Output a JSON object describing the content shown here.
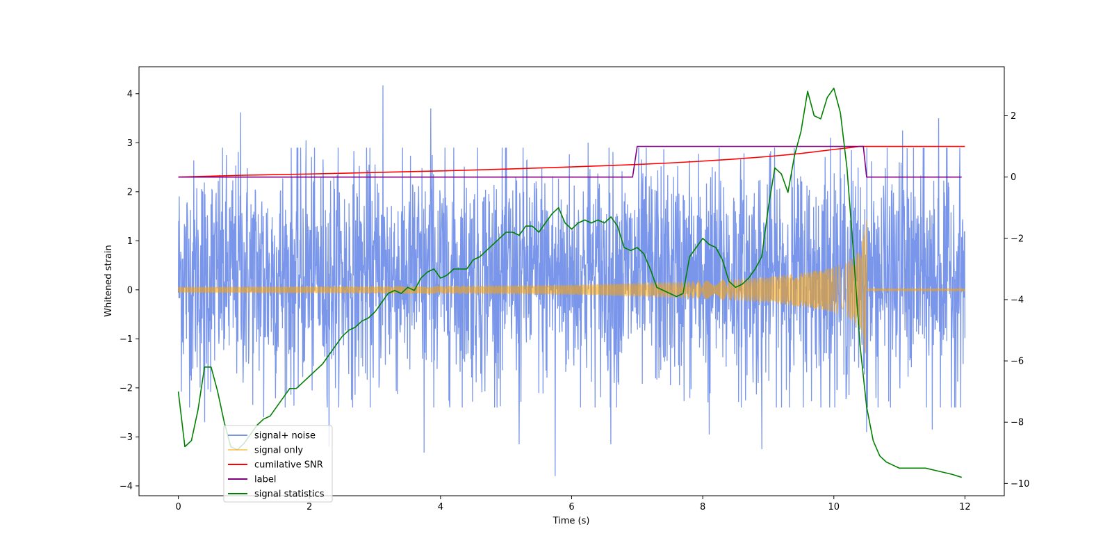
{
  "chart_data": {
    "type": "line",
    "title": "",
    "xlabel": "Time (s)",
    "ylabel": "Whitened strain",
    "xlim": [
      -0.6,
      12.6
    ],
    "ylim": [
      -4.2,
      4.55
    ],
    "y2lim": [
      -10.4,
      3.6
    ],
    "xticks": [
      0,
      2,
      4,
      6,
      8,
      10,
      12
    ],
    "yticks": [
      -4,
      -3,
      -2,
      -1,
      0,
      1,
      2,
      3,
      4
    ],
    "y2ticks": [
      -10,
      -8,
      -6,
      -4,
      -2,
      0,
      2
    ],
    "tick_labels": {
      "x": [
        "0",
        "2",
        "4",
        "6",
        "8",
        "10",
        "12"
      ],
      "y": [
        "−4",
        "−3",
        "−2",
        "−1",
        "0",
        "1",
        "2",
        "3",
        "4"
      ],
      "y2": [
        "−10",
        "−8",
        "−6",
        "−4",
        "−2",
        "0",
        "2"
      ]
    },
    "legend_location": "lower-left",
    "series": [
      {
        "name": "signal+ noise",
        "axis": "left",
        "color": "#4169e1",
        "kind": "noise",
        "t_range": [
          0,
          12
        ],
        "typical_range": [
          -1.8,
          2.4
        ],
        "spikes_up": [
          [
            0.95,
            3.62
          ],
          [
            1.95,
            3.05
          ],
          [
            3.12,
            4.17
          ],
          [
            3.75,
            3.35
          ],
          [
            3.85,
            3.7
          ],
          [
            6.25,
            3.0
          ],
          [
            9.95,
            3.1
          ],
          [
            11.05,
            3.25
          ],
          [
            11.6,
            3.5
          ]
        ],
        "spikes_down": [
          [
            0.4,
            -2.7
          ],
          [
            1.3,
            -2.6
          ],
          [
            2.3,
            -3.2
          ],
          [
            3.75,
            -3.32
          ],
          [
            5.2,
            -3.15
          ],
          [
            5.75,
            -3.8
          ],
          [
            6.6,
            -3.15
          ],
          [
            8.1,
            -2.95
          ],
          [
            8.9,
            -3.25
          ],
          [
            10.5,
            -2.9
          ],
          [
            11.5,
            -2.85
          ]
        ]
      },
      {
        "name": "signal only",
        "axis": "left",
        "color": "#ffa500",
        "kind": "chirp",
        "t_range": [
          0,
          12
        ],
        "t_merge": 10.5,
        "envelope": [
          [
            0,
            0.06
          ],
          [
            2,
            0.07
          ],
          [
            4,
            0.08
          ],
          [
            6,
            0.1
          ],
          [
            8,
            0.18
          ],
          [
            9,
            0.26
          ],
          [
            9.8,
            0.4
          ],
          [
            10.2,
            0.55
          ],
          [
            10.4,
            0.8
          ],
          [
            10.46,
            1.1
          ],
          [
            10.5,
            1.55
          ]
        ]
      },
      {
        "name": "cumilative SNR",
        "axis": "right",
        "color": "#ff0000",
        "kind": "line",
        "x": [
          0,
          1,
          2,
          3,
          4,
          5,
          6,
          7,
          7.5,
          8,
          8.5,
          9,
          9.5,
          10,
          10.2,
          10.4,
          10.5,
          11,
          12
        ],
        "y": [
          0,
          0.06,
          0.1,
          0.15,
          0.2,
          0.26,
          0.33,
          0.41,
          0.46,
          0.52,
          0.59,
          0.67,
          0.77,
          0.9,
          0.95,
          1.0,
          1.0,
          1.0,
          1.0
        ]
      },
      {
        "name": "label",
        "axis": "right",
        "color": "#800080",
        "kind": "line",
        "x": [
          0,
          6.93,
          7.0,
          10.45,
          10.5,
          11.95
        ],
        "y": [
          0,
          0,
          1,
          1,
          0,
          0
        ]
      },
      {
        "name": "signal statistics",
        "axis": "right",
        "color": "#008000",
        "kind": "line",
        "x": [
          0,
          0.1,
          0.2,
          0.3,
          0.4,
          0.5,
          0.6,
          0.7,
          0.8,
          0.9,
          1.0,
          1.1,
          1.2,
          1.3,
          1.4,
          1.5,
          1.6,
          1.7,
          1.8,
          1.9,
          2.0,
          2.1,
          2.2,
          2.3,
          2.4,
          2.5,
          2.6,
          2.7,
          2.8,
          2.9,
          3.0,
          3.1,
          3.2,
          3.3,
          3.4,
          3.5,
          3.6,
          3.7,
          3.8,
          3.9,
          4.0,
          4.1,
          4.2,
          4.3,
          4.4,
          4.5,
          4.6,
          4.7,
          4.8,
          4.9,
          5.0,
          5.1,
          5.2,
          5.3,
          5.4,
          5.5,
          5.6,
          5.7,
          5.8,
          5.9,
          6.0,
          6.1,
          6.2,
          6.3,
          6.4,
          6.5,
          6.6,
          6.7,
          6.8,
          6.9,
          7.0,
          7.1,
          7.2,
          7.3,
          7.4,
          7.5,
          7.6,
          7.7,
          7.8,
          7.9,
          8.0,
          8.1,
          8.2,
          8.3,
          8.4,
          8.5,
          8.6,
          8.7,
          8.8,
          8.9,
          9.0,
          9.1,
          9.2,
          9.3,
          9.4,
          9.5,
          9.6,
          9.7,
          9.8,
          9.9,
          10.0,
          10.1,
          10.2,
          10.3,
          10.4,
          10.5,
          10.6,
          10.7,
          10.8,
          10.9,
          11.0,
          11.2,
          11.4,
          11.6,
          11.8,
          11.95
        ],
        "y": [
          -7.0,
          -8.8,
          -8.6,
          -7.6,
          -6.2,
          -6.2,
          -7.0,
          -8.0,
          -8.8,
          -8.9,
          -8.7,
          -8.4,
          -8.1,
          -7.9,
          -7.8,
          -7.5,
          -7.2,
          -6.9,
          -6.9,
          -6.7,
          -6.5,
          -6.3,
          -6.1,
          -5.8,
          -5.5,
          -5.2,
          -5.0,
          -4.9,
          -4.7,
          -4.6,
          -4.4,
          -4.1,
          -3.8,
          -3.7,
          -3.8,
          -3.6,
          -3.7,
          -3.3,
          -3.1,
          -3.0,
          -3.3,
          -3.2,
          -3.0,
          -3.0,
          -3.0,
          -2.7,
          -2.6,
          -2.4,
          -2.2,
          -2.0,
          -1.8,
          -1.8,
          -1.9,
          -1.6,
          -1.6,
          -1.8,
          -1.5,
          -1.2,
          -1.0,
          -1.5,
          -1.7,
          -1.5,
          -1.4,
          -1.5,
          -1.4,
          -1.5,
          -1.3,
          -1.6,
          -2.3,
          -2.4,
          -2.3,
          -2.5,
          -3.0,
          -3.6,
          -3.7,
          -3.8,
          -3.9,
          -3.8,
          -2.6,
          -2.3,
          -2.0,
          -2.2,
          -2.3,
          -2.7,
          -3.4,
          -3.6,
          -3.5,
          -3.3,
          -3.0,
          -2.6,
          -1.0,
          0.3,
          0.1,
          -0.5,
          0.7,
          1.5,
          2.8,
          2.0,
          1.9,
          2.6,
          2.9,
          2.1,
          0.3,
          -2.5,
          -5.5,
          -7.5,
          -8.6,
          -9.1,
          -9.3,
          -9.4,
          -9.5,
          -9.5,
          -9.5,
          -9.6,
          -9.7,
          -9.8
        ]
      }
    ]
  }
}
